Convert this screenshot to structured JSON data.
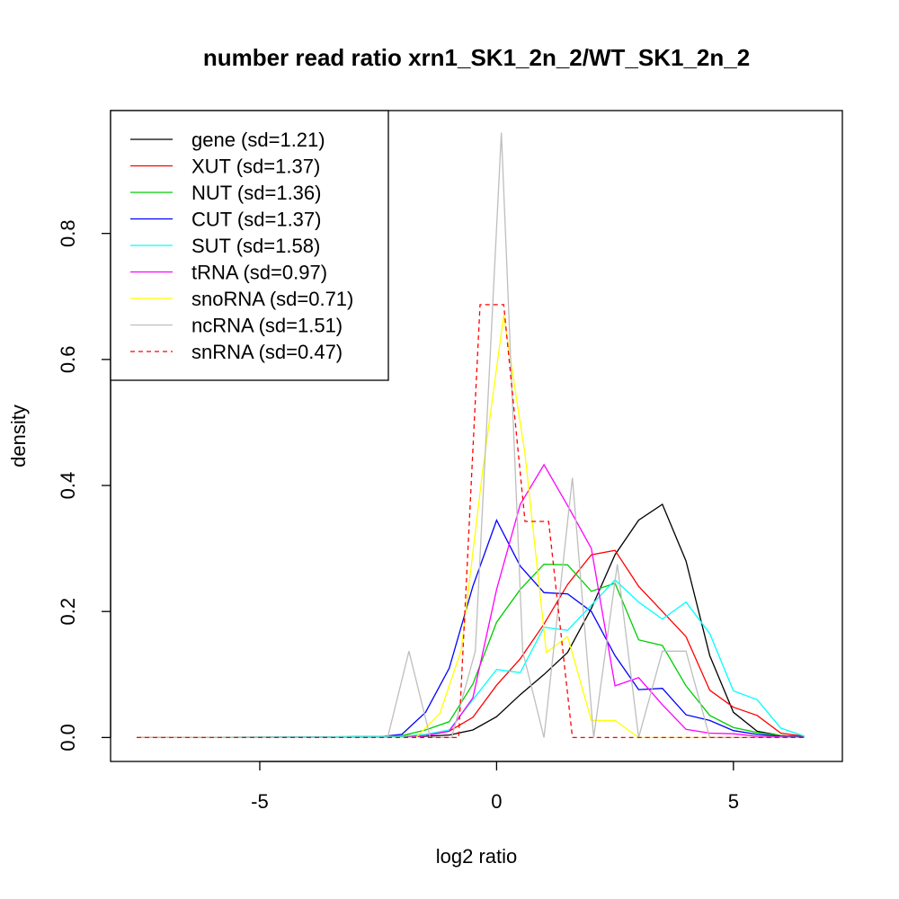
{
  "chart_data": {
    "type": "line",
    "title": "number read ratio xrn1_SK1_2n_2/WT_SK1_2n_2",
    "xlabel": "log2 ratio",
    "ylabel": "density",
    "xlim": [
      -8.15,
      7.3
    ],
    "ylim": [
      -0.038,
      0.995
    ],
    "xticks": [
      -5,
      0,
      5
    ],
    "yticks": [
      0.0,
      0.2,
      0.4,
      0.6,
      0.8
    ],
    "xtick_labels": [
      "-5",
      "0",
      "5"
    ],
    "ytick_labels": [
      "0.0",
      "0.2",
      "0.4",
      "0.6",
      "0.8"
    ],
    "grid": false,
    "legend_position": "top-left",
    "series": [
      {
        "name": "gene (sd=1.21)",
        "color": "#000000",
        "dash": "solid",
        "x": [
          -7.6,
          -3.0,
          -2.5,
          -2.0,
          -1.5,
          -1.0,
          -0.5,
          0.0,
          0.5,
          1.0,
          1.5,
          2.0,
          2.5,
          3.0,
          3.5,
          4.0,
          4.5,
          5.0,
          5.5,
          6.0,
          6.5
        ],
        "y": [
          0.0,
          0.0,
          0.0,
          0.001,
          0.002,
          0.004,
          0.012,
          0.033,
          0.068,
          0.1,
          0.135,
          0.205,
          0.29,
          0.345,
          0.37,
          0.28,
          0.13,
          0.04,
          0.01,
          0.003,
          0.001
        ]
      },
      {
        "name": "XUT (sd=1.37)",
        "color": "#ff0000",
        "dash": "solid",
        "x": [
          -7.6,
          -3.0,
          -2.5,
          -2.0,
          -1.5,
          -1.0,
          -0.5,
          0.0,
          0.5,
          1.0,
          1.5,
          2.0,
          2.5,
          3.0,
          3.5,
          4.0,
          4.5,
          5.0,
          5.5,
          6.0,
          6.5
        ],
        "y": [
          0.0,
          0.0,
          0.001,
          0.002,
          0.005,
          0.01,
          0.032,
          0.083,
          0.125,
          0.18,
          0.243,
          0.29,
          0.297,
          0.24,
          0.2,
          0.16,
          0.075,
          0.048,
          0.035,
          0.007,
          0.002
        ]
      },
      {
        "name": "NUT (sd=1.36)",
        "color": "#00cd00",
        "dash": "solid",
        "x": [
          -7.6,
          -3.0,
          -2.5,
          -2.0,
          -1.5,
          -1.0,
          -0.5,
          0.0,
          0.5,
          1.0,
          1.5,
          2.0,
          2.5,
          3.0,
          3.5,
          4.0,
          4.5,
          5.0,
          5.5,
          6.0,
          6.5
        ],
        "y": [
          0.0,
          0.001,
          0.001,
          0.003,
          0.012,
          0.025,
          0.085,
          0.183,
          0.235,
          0.275,
          0.274,
          0.232,
          0.245,
          0.155,
          0.146,
          0.082,
          0.035,
          0.016,
          0.008,
          0.003,
          0.001
        ]
      },
      {
        "name": "CUT (sd=1.37)",
        "color": "#0000ff",
        "dash": "solid",
        "x": [
          -7.6,
          -3.0,
          -2.5,
          -2.0,
          -1.5,
          -1.0,
          -0.5,
          0.0,
          0.5,
          1.0,
          1.5,
          2.0,
          2.5,
          3.0,
          3.5,
          4.0,
          4.5,
          5.0,
          5.5,
          6.0,
          6.5
        ],
        "y": [
          0.0,
          0.001,
          0.001,
          0.005,
          0.04,
          0.11,
          0.24,
          0.345,
          0.272,
          0.23,
          0.228,
          0.2,
          0.13,
          0.076,
          0.078,
          0.036,
          0.027,
          0.011,
          0.005,
          0.002,
          0.001
        ]
      },
      {
        "name": "SUT (sd=1.58)",
        "color": "#00ffff",
        "dash": "solid",
        "x": [
          -7.6,
          -3.5,
          -3.0,
          -2.5,
          -2.0,
          -1.5,
          -1.0,
          -0.5,
          0.0,
          0.5,
          1.0,
          1.5,
          2.0,
          2.5,
          3.0,
          3.5,
          4.0,
          4.5,
          5.0,
          5.5,
          6.0,
          6.5
        ],
        "y": [
          0.0,
          0.001,
          0.002,
          0.002,
          0.002,
          0.005,
          0.012,
          0.06,
          0.108,
          0.103,
          0.175,
          0.17,
          0.21,
          0.25,
          0.215,
          0.188,
          0.215,
          0.165,
          0.074,
          0.06,
          0.015,
          0.002
        ]
      },
      {
        "name": "tRNA (sd=0.97)",
        "color": "#ff00ff",
        "dash": "solid",
        "x": [
          -7.6,
          -2.0,
          -1.5,
          -1.0,
          -0.5,
          0.0,
          0.5,
          1.0,
          1.5,
          2.0,
          2.5,
          3.0,
          3.5,
          4.0,
          4.5,
          5.0,
          5.5,
          6.0,
          6.5
        ],
        "y": [
          0.0,
          0.0,
          0.003,
          0.01,
          0.063,
          0.235,
          0.37,
          0.433,
          0.368,
          0.3,
          0.082,
          0.095,
          0.052,
          0.013,
          0.007,
          0.006,
          0.002,
          0.001,
          0.0
        ]
      },
      {
        "name": "snoRNA (sd=0.71)",
        "color": "#ffff00",
        "dash": "solid",
        "x": [
          -7.6,
          -2.2,
          -1.7,
          -1.2,
          -0.75,
          -0.3,
          0.15,
          0.6,
          1.05,
          1.5,
          2.0,
          2.5,
          3.0,
          3.5,
          4.0,
          6.5
        ],
        "y": [
          0.0,
          0.0,
          0.0,
          0.038,
          0.138,
          0.42,
          0.67,
          0.45,
          0.135,
          0.16,
          0.027,
          0.027,
          0.0,
          0.0,
          0.0,
          0.0
        ]
      },
      {
        "name": "ncRNA (sd=1.51)",
        "color": "#bebebe",
        "dash": "solid",
        "x": [
          -7.6,
          -2.3,
          -1.85,
          -1.4,
          -0.95,
          -0.45,
          0.1,
          0.55,
          1.0,
          1.6,
          2.05,
          2.55,
          3.0,
          3.5,
          4.0,
          4.5,
          6.5
        ],
        "y": [
          0.0,
          0.0,
          0.137,
          0.0,
          0.0,
          0.137,
          0.96,
          0.137,
          0.0,
          0.412,
          0.0,
          0.275,
          0.0,
          0.137,
          0.137,
          0.0,
          0.0
        ]
      },
      {
        "name": "snRNA (sd=0.47)",
        "color": "#ff0000",
        "dash": "dashed",
        "x": [
          -7.6,
          -0.8,
          -0.35,
          0.15,
          0.6,
          1.1,
          1.6,
          6.5
        ],
        "y": [
          0.0,
          0.0,
          0.687,
          0.687,
          0.343,
          0.343,
          0.0,
          0.0
        ]
      }
    ]
  }
}
